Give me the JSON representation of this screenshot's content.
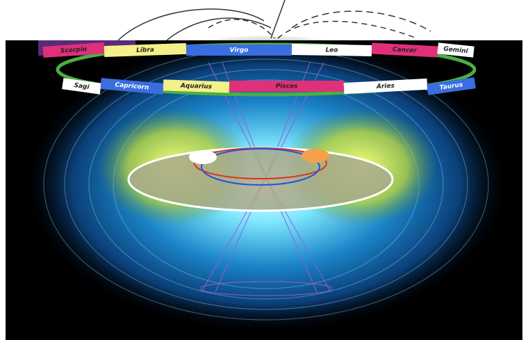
{
  "ring": {
    "back": [
      "Scorpio",
      "Libra",
      "Virgo",
      "Leo",
      "Cancer",
      "Gemini"
    ],
    "front": [
      "Sagi",
      "Capricorn",
      "Aquarius",
      "Pisces",
      "Aries",
      "Taurus"
    ]
  }
}
